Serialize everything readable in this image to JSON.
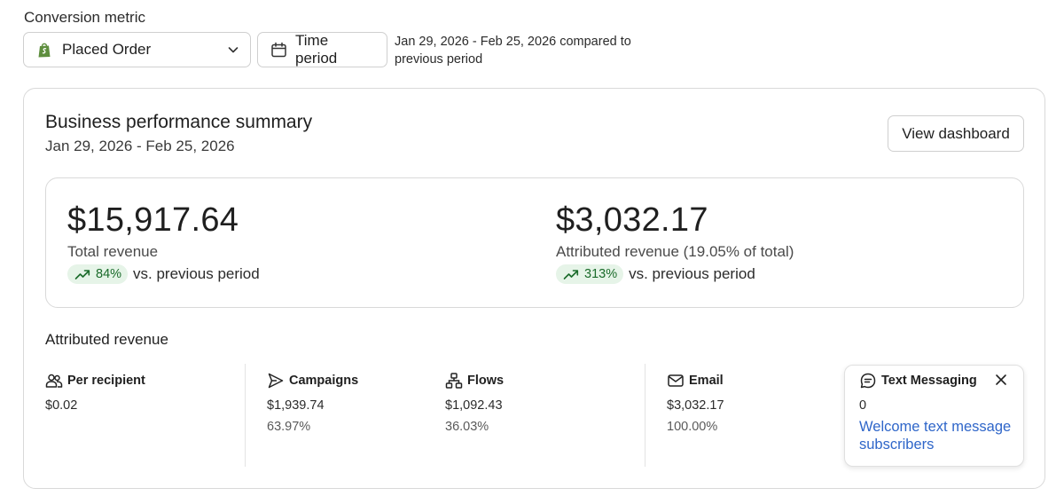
{
  "filters": {
    "metric_label": "Conversion metric",
    "metric_value": "Placed Order",
    "time_button": "Time period",
    "period_line1": "Jan 29, 2026 - Feb 25, 2026 compared to",
    "period_line2": "previous period"
  },
  "summary": {
    "title": "Business performance summary",
    "date_range": "Jan 29, 2026 - Feb 25, 2026",
    "view_button": "View dashboard",
    "total": {
      "value": "$15,917.64",
      "label": "Total revenue",
      "change": "84%",
      "vs": "vs. previous period"
    },
    "attributed": {
      "value": "$3,032.17",
      "label": "Attributed revenue (19.05% of total)",
      "change": "313%",
      "vs": "vs. previous period"
    }
  },
  "attributed_revenue": {
    "title": "Attributed revenue",
    "per_recipient": {
      "label": "Per recipient",
      "value": "$0.02"
    },
    "campaigns": {
      "label": "Campaigns",
      "value": "$1,939.74",
      "percent": "63.97%"
    },
    "flows": {
      "label": "Flows",
      "value": "$1,092.43",
      "percent": "36.03%"
    },
    "email": {
      "label": "Email",
      "value": "$3,032.17",
      "percent": "100.00%"
    },
    "text_messaging": {
      "label": "Text Messaging",
      "value": "0",
      "link_line1": "Welcome text message",
      "link_line2": "subscribers"
    }
  },
  "colors": {
    "positive_pill_bg": "#e6f4e8",
    "positive_text": "#1a6b2a",
    "link": "#2f66c9",
    "shopify_green": "#5e8e3e"
  },
  "icons": [
    "shopify-bag-icon",
    "chevron-down-icon",
    "calendar-icon",
    "trend-up-icon",
    "users-icon",
    "send-icon",
    "flows-icon",
    "mail-icon",
    "chat-icon",
    "close-icon"
  ]
}
